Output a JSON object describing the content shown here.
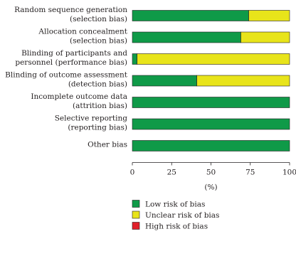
{
  "chart_data": {
    "type": "bar",
    "orientation": "horizontal",
    "stacked": true,
    "categories": [
      [
        "Random sequence generation",
        "(selection bias)"
      ],
      [
        "Allocation concealment",
        "(selection bias)"
      ],
      [
        "Blinding of participants and",
        "personnel (performance bias)"
      ],
      [
        "Blinding of outcome assessment",
        "(detection bias)"
      ],
      [
        "Incomplete outcome data",
        "(attrition bias)"
      ],
      [
        "Selective reporting",
        "(reporting bias)"
      ],
      [
        "Other bias"
      ]
    ],
    "series": [
      {
        "name": "Low risk of bias",
        "color": "#0f9a48",
        "values": [
          74,
          69,
          3,
          41,
          100,
          100,
          100
        ]
      },
      {
        "name": "Unclear risk of bias",
        "color": "#e8e41a",
        "values": [
          26,
          31,
          97,
          59,
          0,
          0,
          0
        ]
      },
      {
        "name": "High risk of bias",
        "color": "#e0202a",
        "values": [
          0,
          0,
          0,
          0,
          0,
          0,
          0
        ]
      }
    ],
    "xticks": [
      "0",
      "25",
      "50",
      "75",
      "100"
    ],
    "xlabel": "(%)",
    "xlim": [
      0,
      100
    ],
    "grid": false,
    "legend": "bottom"
  }
}
